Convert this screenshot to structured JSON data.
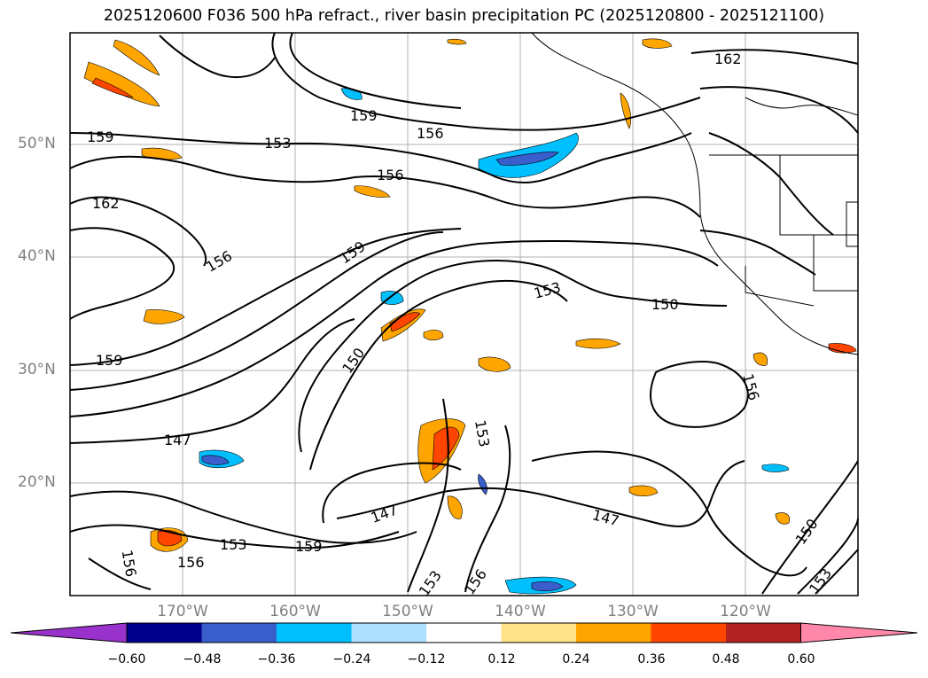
{
  "title": "2025120600 F036 500 hPa refract., river basin precipitation PC (2025120800 - 2025121100)",
  "lat_labels": [
    "50°N",
    "40°N",
    "30°N",
    "20°N"
  ],
  "lon_labels": [
    "170°W",
    "160°W",
    "150°W",
    "140°W",
    "130°W",
    "120°W"
  ],
  "contour_labels": [
    "162",
    "159",
    "156",
    "153",
    "156",
    "159",
    "162",
    "156",
    "159",
    "153",
    "150",
    "150",
    "147",
    "147",
    "147",
    "156",
    "153",
    "159",
    "156",
    "156",
    "153",
    "150",
    "153",
    "156",
    "153",
    "159"
  ],
  "colorbar": {
    "ticks": [
      "−0.60",
      "−0.48",
      "−0.36",
      "−0.24",
      "−0.12",
      "0.12",
      "0.24",
      "0.36",
      "0.48",
      "0.60"
    ],
    "colors": [
      "#9932CC",
      "#00008B",
      "#3A5FCD",
      "#00BFFF",
      "#ADDFFF",
      "#FFFFFF",
      "#FFE38A",
      "#FFA500",
      "#FF4500",
      "#B22222",
      "#FF88AA"
    ]
  },
  "colors": {
    "positive_orange": "#FFA500",
    "positive_red": "#FF4500",
    "negative_blue": "#00BFFF",
    "negative_dark": "#3A5FCD",
    "label_gray": "#808080"
  }
}
